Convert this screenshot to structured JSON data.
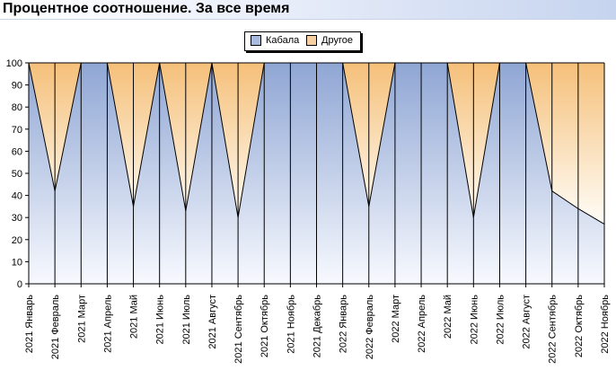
{
  "title": "Процентное соотношение. За все время",
  "legend": {
    "series1": "Кабала",
    "series2": "Другое"
  },
  "colors": {
    "series1_top": "#8fa6d4",
    "series1_bottom": "#f7f9fe",
    "series2_top": "#f5c07a",
    "series2_bottom": "#fffdf8"
  },
  "chart_data": {
    "type": "area",
    "stacked": true,
    "percent": true,
    "categories": [
      "2021 Январь",
      "2021 Февраль",
      "2021 Март",
      "2021 Апрель",
      "2021 Май",
      "2021 Июнь",
      "2021 Июль",
      "2021 Август",
      "2021 Сентябрь",
      "2021 Октябрь",
      "2021 Ноябрь",
      "2021 Декабрь",
      "2022 Январь",
      "2022 Февраль",
      "2022 Март",
      "2022 Апрель",
      "2022 Май",
      "2022 Июнь",
      "2022 Июль",
      "2022 Август",
      "2022 Сентябрь",
      "2022 Октябрь",
      "2022 Ноябрь"
    ],
    "series": [
      {
        "name": "Кабала",
        "values": [
          100,
          42,
          100,
          100,
          35,
          100,
          33,
          100,
          30,
          100,
          100,
          100,
          100,
          35,
          100,
          100,
          100,
          30,
          100,
          100,
          42,
          34,
          27
        ]
      },
      {
        "name": "Другое",
        "values": [
          0,
          58,
          0,
          0,
          65,
          0,
          67,
          0,
          70,
          0,
          0,
          0,
          0,
          65,
          0,
          0,
          0,
          70,
          0,
          0,
          58,
          66,
          73
        ]
      }
    ],
    "ylim": [
      0,
      100
    ],
    "yticks": [
      0,
      10,
      20,
      30,
      40,
      50,
      60,
      70,
      80,
      90,
      100
    ],
    "grid": false,
    "legend_position": "top-center"
  }
}
